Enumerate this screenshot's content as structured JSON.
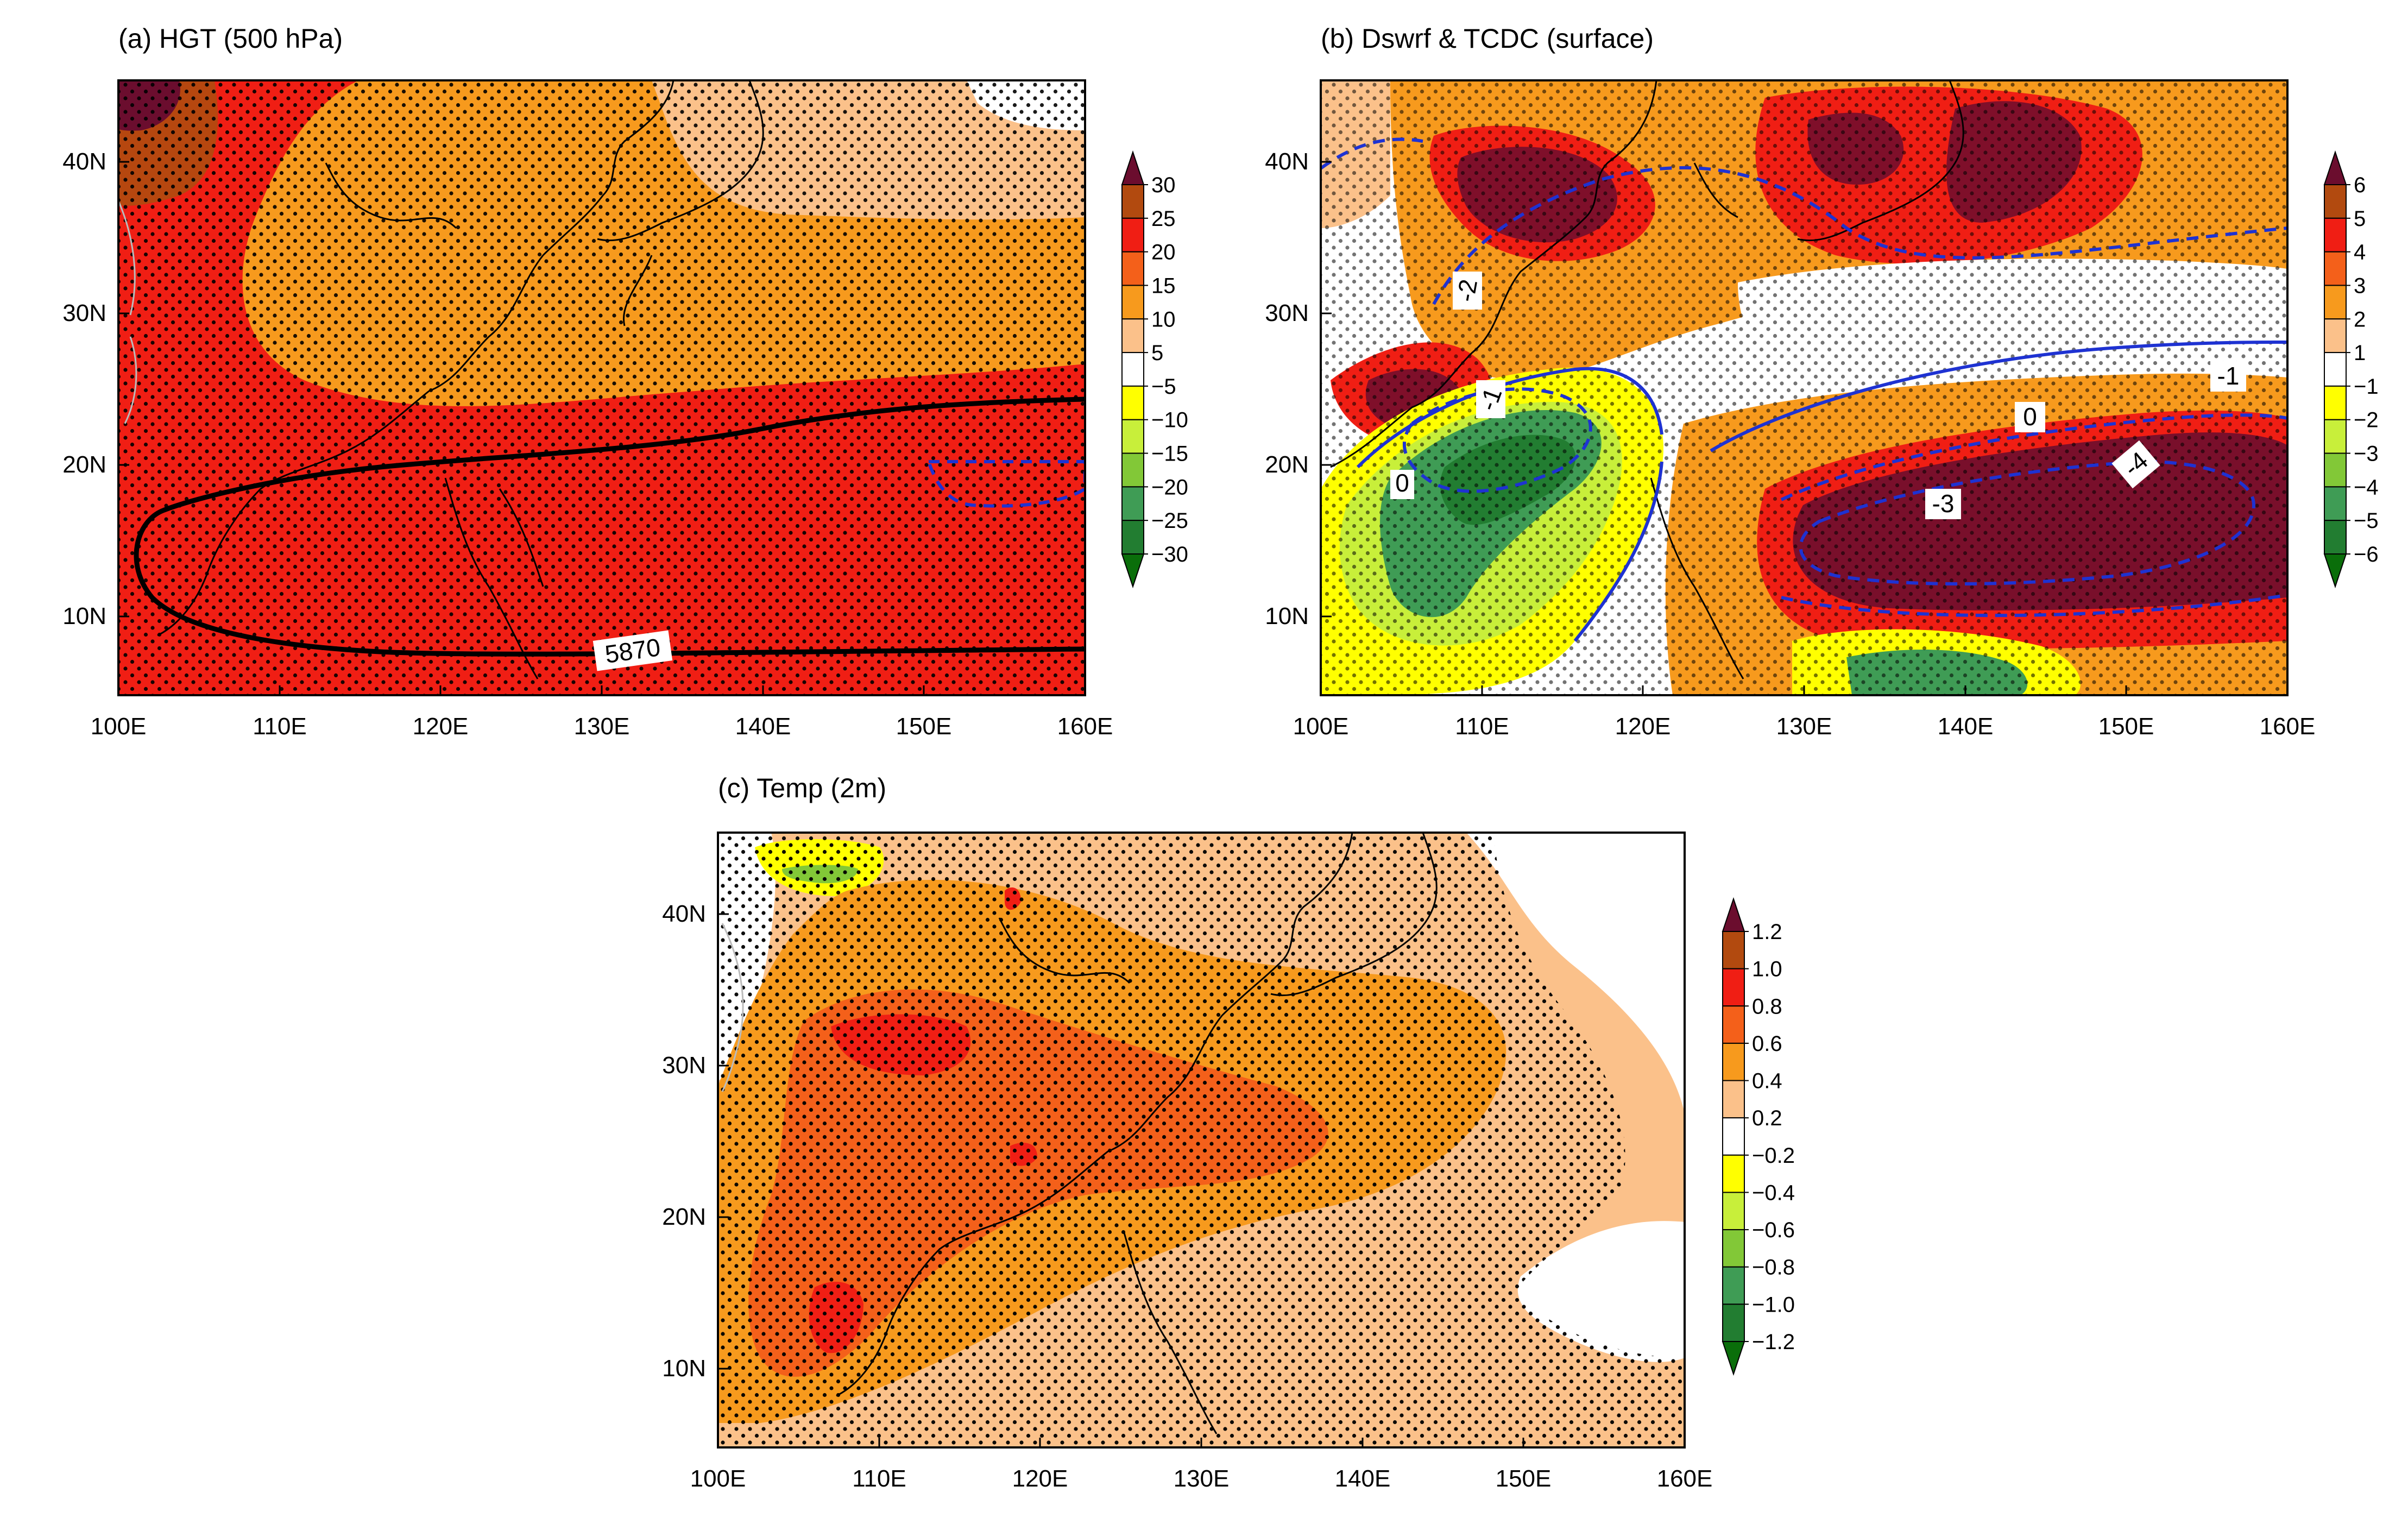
{
  "figure": {
    "panels": [
      {
        "id": "a",
        "title": "(a) HGT (500 hPa)",
        "x_ticks": [
          "100E",
          "110E",
          "120E",
          "130E",
          "140E",
          "150E",
          "160E"
        ],
        "y_ticks": [
          "40N",
          "30N",
          "20N",
          "10N"
        ],
        "colorbar_labels": [
          "30",
          "25",
          "20",
          "15",
          "10",
          "5",
          "−5",
          "−10",
          "−15",
          "−20",
          "−25",
          "−30"
        ],
        "contour_labels": [
          "5870"
        ]
      },
      {
        "id": "b",
        "title": "(b) Dswrf & TCDC (surface)",
        "x_ticks": [
          "100E",
          "110E",
          "120E",
          "130E",
          "140E",
          "150E",
          "160E"
        ],
        "y_ticks": [
          "40N",
          "30N",
          "20N",
          "10N"
        ],
        "colorbar_labels": [
          "6",
          "5",
          "4",
          "3",
          "2",
          "1",
          "−1",
          "−2",
          "−3",
          "−4",
          "−5",
          "−6"
        ],
        "contour_labels": [
          "-2",
          "-1",
          "0",
          "-1",
          "0",
          "-3",
          "-4"
        ]
      },
      {
        "id": "c",
        "title": "(c) Temp (2m)",
        "x_ticks": [
          "100E",
          "110E",
          "120E",
          "130E",
          "140E",
          "150E",
          "160E"
        ],
        "y_ticks": [
          "40N",
          "30N",
          "20N",
          "10N"
        ],
        "colorbar_labels": [
          "1.2",
          "1.0",
          "0.8",
          "0.6",
          "0.4",
          "0.2",
          "−0.2",
          "−0.4",
          "−0.6",
          "−0.8",
          "−1.0",
          "−1.2"
        ]
      }
    ],
    "palette": [
      "#6b0d2e",
      "#b24a0f",
      "#f01e14",
      "#f4601a",
      "#f79a1d",
      "#fbc18a",
      "#ffffff",
      "#ffff00",
      "#c8ef3a",
      "#82c837",
      "#3f9c55",
      "#227d31",
      "#0a6e0a"
    ]
  }
}
